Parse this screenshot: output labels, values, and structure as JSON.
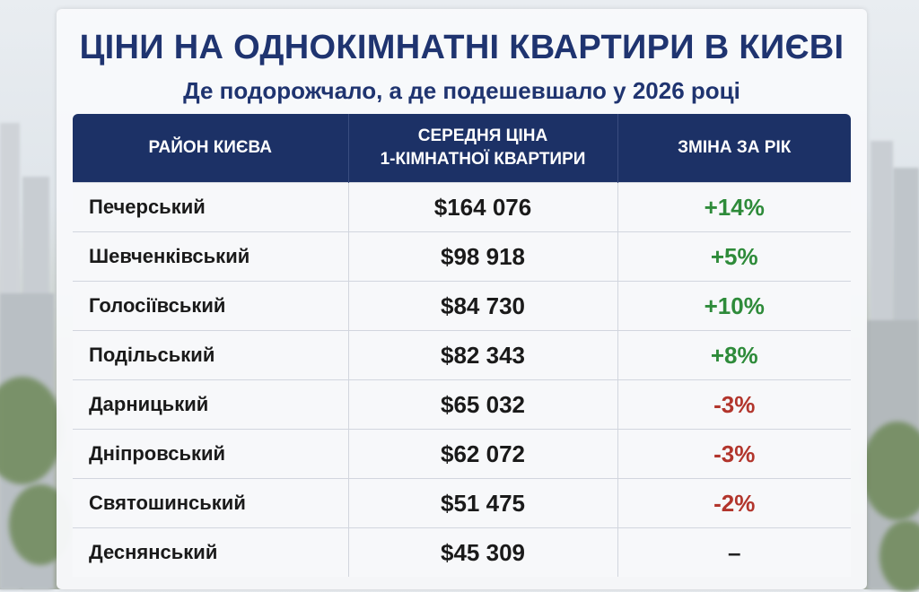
{
  "title": "ЦІНИ НА ОДНОКІМНАТНІ КВАРТИРИ В КИЄВІ",
  "subtitle": "Де подорожчало, а де подешевшало у 2026 році",
  "table": {
    "headers": {
      "district": "РАЙОН КИЄВА",
      "price_line1": "СЕРЕДНЯ ЦІНА",
      "price_line2": "1-КІМНАТНОЇ КВАРТИРИ",
      "change": "ЗМІНА ЗА РІК"
    },
    "rows": [
      {
        "district": "Печерський",
        "price": "$164 076",
        "change": "+14%",
        "trend": "pos"
      },
      {
        "district": "Шевченківський",
        "price": "$98 918",
        "change": "+5%",
        "trend": "pos"
      },
      {
        "district": "Голосіївський",
        "price": "$84 730",
        "change": "+10%",
        "trend": "pos"
      },
      {
        "district": "Подільський",
        "price": "$82 343",
        "change": "+8%",
        "trend": "pos"
      },
      {
        "district": "Дарницький",
        "price": "$65 032",
        "change": "-3%",
        "trend": "neg"
      },
      {
        "district": "Дніпровський",
        "price": "$62 072",
        "change": "-3%",
        "trend": "neg"
      },
      {
        "district": "Святошинський",
        "price": "$51 475",
        "change": "-2%",
        "trend": "neg"
      },
      {
        "district": "Деснянський",
        "price": "$45 309",
        "change": "–",
        "trend": "neu"
      }
    ]
  },
  "colors": {
    "header_bg": "#1c3166",
    "title": "#1f3470",
    "positive": "#2e8b3a",
    "negative": "#b2352c"
  }
}
